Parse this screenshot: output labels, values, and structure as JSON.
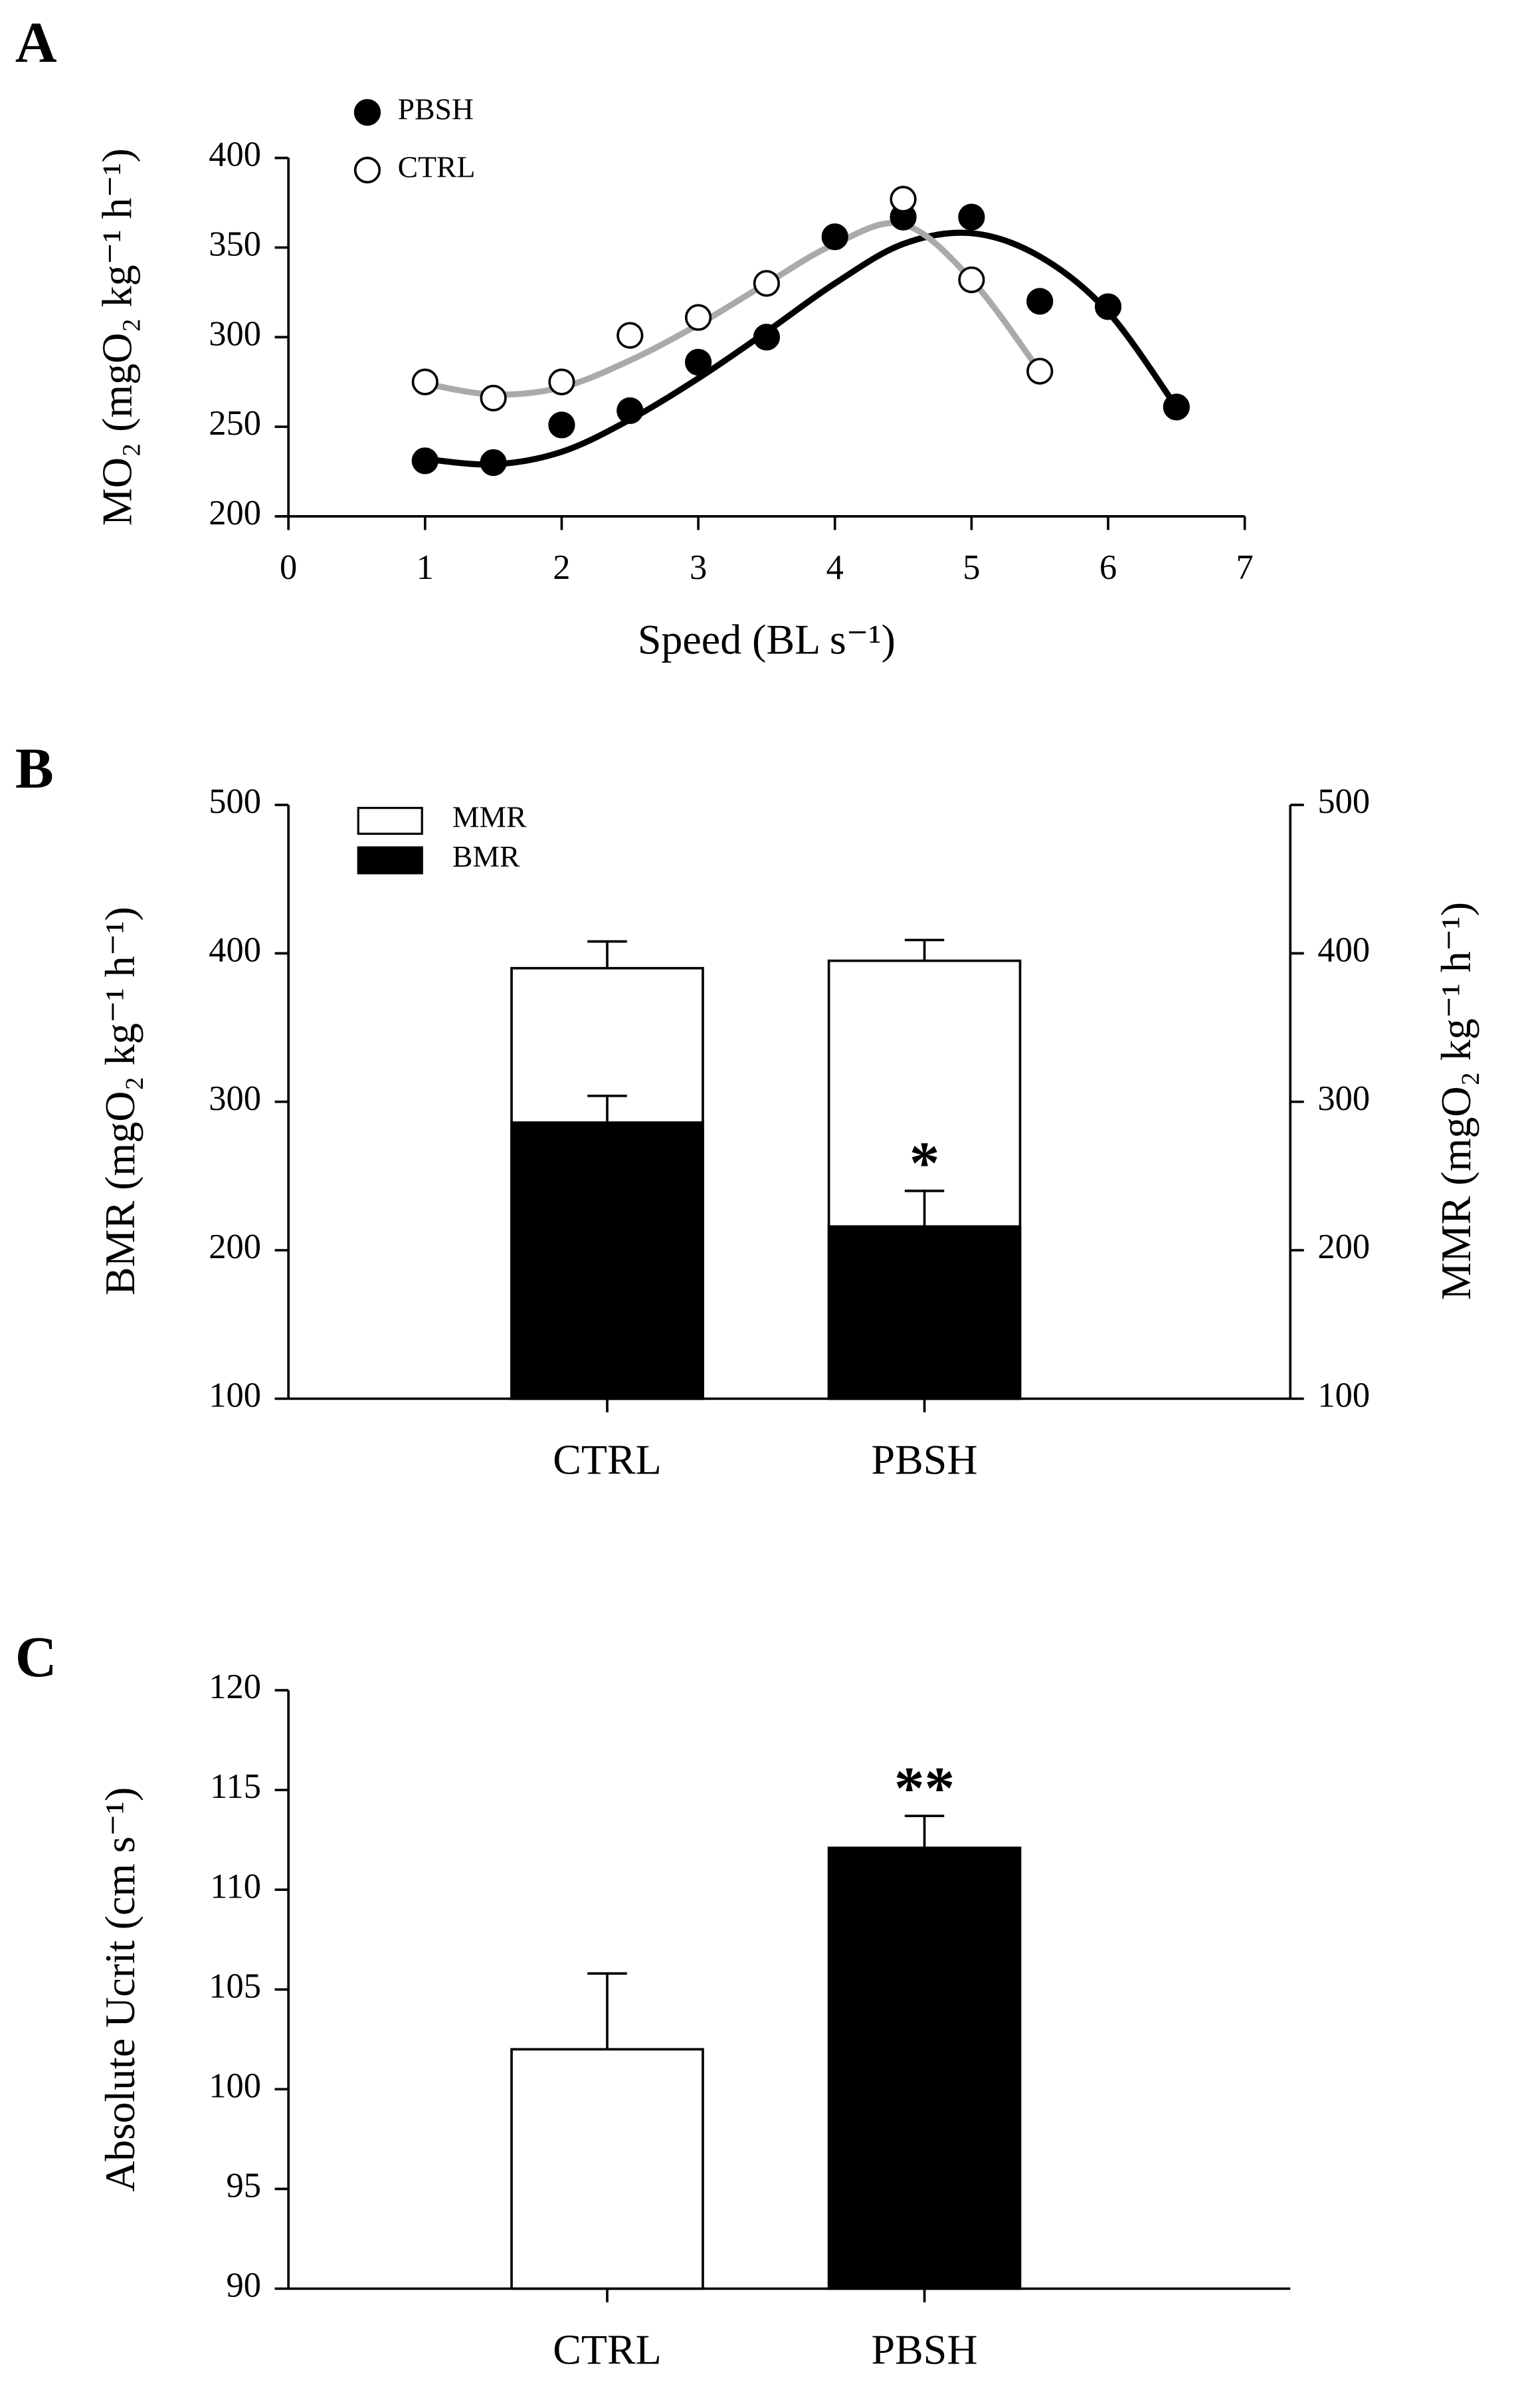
{
  "chart_data": [
    {
      "type": "scatter",
      "label": "A",
      "xlabel": "Speed (BL s⁻¹)",
      "ylabel": "MO₂ (mgO₂ kg⁻¹ h⁻¹)",
      "xlim": [
        0,
        7
      ],
      "xticks": [
        0,
        1,
        2,
        3,
        4,
        5,
        6,
        7
      ],
      "ylim": [
        200,
        400
      ],
      "yticks": [
        200,
        250,
        300,
        350,
        400
      ],
      "legend": "upper left",
      "series": [
        {
          "name": "PBSH",
          "color": "#000000",
          "x": [
            1,
            1.5,
            2,
            2.5,
            3,
            3.5,
            4,
            4.5,
            5,
            5.5,
            6,
            6.5
          ],
          "values": [
            231,
            230,
            251,
            259,
            286,
            300,
            356,
            367,
            367,
            320,
            317,
            261
          ],
          "fit": {
            "color": "#000000",
            "x": [
              1,
              1.5,
              2,
              2.5,
              3,
              3.5,
              4,
              4.5,
              5,
              5.5,
              6,
              6.5
            ],
            "values": [
              232,
              229,
              236,
              254,
              277,
              303,
              330,
              352,
              358,
              345,
              314,
              261
            ]
          }
        },
        {
          "name": "CTRL",
          "color": "#ffffff",
          "x": [
            1,
            1.5,
            2,
            2.5,
            3,
            3.5,
            4.5,
            5,
            5.5
          ],
          "values": [
            275,
            266,
            275,
            301,
            311,
            330,
            377,
            332,
            281
          ],
          "fit": {
            "color": "#aaaaaa",
            "x": [
              1,
              1.5,
              2,
              2.5,
              3,
              3.5,
              4,
              4.5,
              5,
              5.5
            ],
            "values": [
              274,
              268,
              272,
              287,
              307,
              330,
              352,
              363,
              332,
              281
            ]
          }
        }
      ]
    },
    {
      "type": "bar",
      "label": "B",
      "categories": [
        "CTRL",
        "PBSH"
      ],
      "ylabel": "BMR (mgO₂ kg⁻¹ h⁻¹)",
      "y2label": "MMR (mgO₂ kg⁻¹ h⁻¹)",
      "ylim": [
        100,
        500
      ],
      "yticks": [
        100,
        200,
        300,
        400,
        500
      ],
      "y2lim": [
        100,
        500
      ],
      "y2ticks": [
        100,
        200,
        300,
        400,
        500
      ],
      "legend": "upper left",
      "series": [
        {
          "name": "MMR",
          "color": "#ffffff",
          "axis": "y2",
          "values": [
            390,
            395
          ],
          "errors": [
            18,
            14
          ]
        },
        {
          "name": "BMR",
          "color": "#000000",
          "values": [
            286,
            216
          ],
          "errors": [
            18,
            24
          ]
        }
      ],
      "annotations": [
        {
          "text": "*",
          "series": 1,
          "category": 1
        }
      ]
    },
    {
      "type": "bar",
      "label": "C",
      "categories": [
        "CTRL",
        "PBSH"
      ],
      "ylabel": "Absolute Ucrit (cm s⁻¹)",
      "ylim": [
        90,
        120
      ],
      "yticks": [
        90,
        95,
        100,
        105,
        110,
        115,
        120
      ],
      "series": [
        {
          "colors": [
            "#ffffff",
            "#000000"
          ],
          "values": [
            102,
            112.1
          ],
          "errors": [
            3.8,
            1.6
          ]
        }
      ],
      "annotations": [
        {
          "text": "**",
          "series": 0,
          "category": 1
        }
      ]
    }
  ]
}
